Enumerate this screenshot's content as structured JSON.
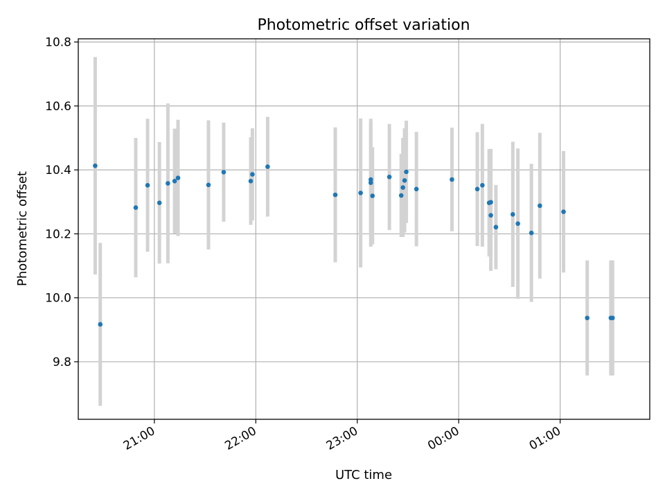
{
  "chart_data": {
    "type": "scatter",
    "title": "Photometric offset variation",
    "xlabel": "UTC time",
    "ylabel": "Photometric offset",
    "ylim": [
      9.62,
      10.81
    ],
    "xlim": [
      "20:15",
      "01:53"
    ],
    "x_ticks": [
      "21:00",
      "22:00",
      "23:00",
      "00:00",
      "01:00"
    ],
    "y_ticks": [
      "9.8",
      "10.0",
      "10.2",
      "10.4",
      "10.6",
      "10.8"
    ],
    "grid": true,
    "colors": {
      "point": "#1f77b4",
      "errorbar": "#d3d3d3",
      "grid": "#b0b0b0"
    },
    "points": [
      {
        "x": "20:25",
        "y": 10.413,
        "err": 0.34
      },
      {
        "x": "20:28",
        "y": 9.917,
        "err": 0.255
      },
      {
        "x": "20:49",
        "y": 10.282,
        "err": 0.218
      },
      {
        "x": "20:56",
        "y": 10.352,
        "err": 0.208
      },
      {
        "x": "21:03",
        "y": 10.297,
        "err": 0.19
      },
      {
        "x": "21:08",
        "y": 10.358,
        "err": 0.25
      },
      {
        "x": "21:12",
        "y": 10.365,
        "err": 0.164
      },
      {
        "x": "21:14",
        "y": 10.375,
        "err": 0.182
      },
      {
        "x": "21:32",
        "y": 10.353,
        "err": 0.202
      },
      {
        "x": "21:41",
        "y": 10.393,
        "err": 0.155
      },
      {
        "x": "21:57",
        "y": 10.365,
        "err": 0.137
      },
      {
        "x": "21:58",
        "y": 10.386,
        "err": 0.144
      },
      {
        "x": "22:07",
        "y": 10.41,
        "err": 0.156
      },
      {
        "x": "22:47",
        "y": 10.322,
        "err": 0.211
      },
      {
        "x": "23:02",
        "y": 10.328,
        "err": 0.233
      },
      {
        "x": "23:08",
        "y": 10.36,
        "err": 0.2
      },
      {
        "x": "23:08",
        "y": 10.37,
        "err": 0.178
      },
      {
        "x": "23:09",
        "y": 10.319,
        "err": 0.152
      },
      {
        "x": "23:19",
        "y": 10.378,
        "err": 0.166
      },
      {
        "x": "23:26",
        "y": 10.32,
        "err": 0.13
      },
      {
        "x": "23:27",
        "y": 10.345,
        "err": 0.155
      },
      {
        "x": "23:28",
        "y": 10.367,
        "err": 0.163
      },
      {
        "x": "23:29",
        "y": 10.394,
        "err": 0.16
      },
      {
        "x": "23:35",
        "y": 10.34,
        "err": 0.179
      },
      {
        "x": "23:56",
        "y": 10.37,
        "err": 0.162
      },
      {
        "x": "00:11",
        "y": 10.34,
        "err": 0.178
      },
      {
        "x": "00:14",
        "y": 10.352,
        "err": 0.192
      },
      {
        "x": "00:18",
        "y": 10.297,
        "err": 0.168
      },
      {
        "x": "00:19",
        "y": 10.299,
        "err": 0.167
      },
      {
        "x": "00:19",
        "y": 10.258,
        "err": 0.174
      },
      {
        "x": "00:22",
        "y": 10.221,
        "err": 0.132
      },
      {
        "x": "00:32",
        "y": 10.261,
        "err": 0.227
      },
      {
        "x": "00:35",
        "y": 10.232,
        "err": 0.235
      },
      {
        "x": "00:43",
        "y": 10.203,
        "err": 0.216
      },
      {
        "x": "00:48",
        "y": 10.288,
        "err": 0.228
      },
      {
        "x": "01:02",
        "y": 10.269,
        "err": 0.19
      },
      {
        "x": "01:16",
        "y": 9.937,
        "err": 0.18
      },
      {
        "x": "01:30",
        "y": 9.937,
        "err": 0.18
      },
      {
        "x": "01:31",
        "y": 9.937,
        "err": 0.18
      }
    ]
  }
}
